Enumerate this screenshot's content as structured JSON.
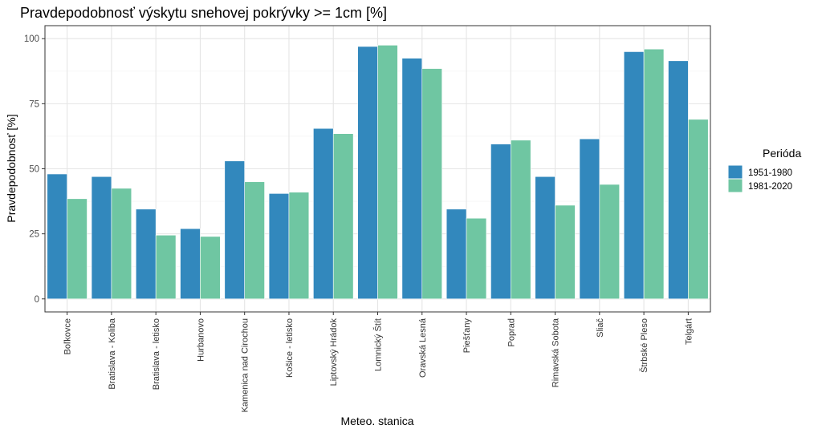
{
  "chart_data": {
    "type": "bar",
    "title": "Pravdepodobnosť výskytu snehovej pokrývky >= 1cm [%]",
    "xlabel": "Meteo. stanica",
    "ylabel": "Pravdepodobnosť [%]",
    "ylim": [
      -5,
      105
    ],
    "yticks": [
      0,
      25,
      50,
      75,
      100
    ],
    "grid": true,
    "legend": {
      "title": "Perióda",
      "position": "right"
    },
    "categories": [
      "Boľkovce",
      "Bratislava - Koliba",
      "Bratislava - letisko",
      "Hurbanovo",
      "Kamenica nad Cirochou",
      "Košice - letisko",
      "Liptovský Hrádok",
      "Lomnický Štít",
      "Oravská Lesná",
      "Piešťany",
      "Poprad",
      "Rimavská Sobota",
      "Sliač",
      "Štrbské Pleso",
      "Telgárt"
    ],
    "series": [
      {
        "name": "1951-1980",
        "color": "#3288bd",
        "values": [
          48,
          47,
          34.5,
          27,
          53,
          40.5,
          65.5,
          97,
          92.5,
          34.5,
          59.5,
          47,
          61.5,
          95,
          91.5
        ]
      },
      {
        "name": "1981-2020",
        "color": "#6fc6a2",
        "values": [
          38.5,
          42.5,
          24.5,
          24,
          45,
          41,
          63.5,
          97.5,
          88.5,
          31,
          61,
          36,
          44,
          96,
          69
        ]
      }
    ]
  }
}
